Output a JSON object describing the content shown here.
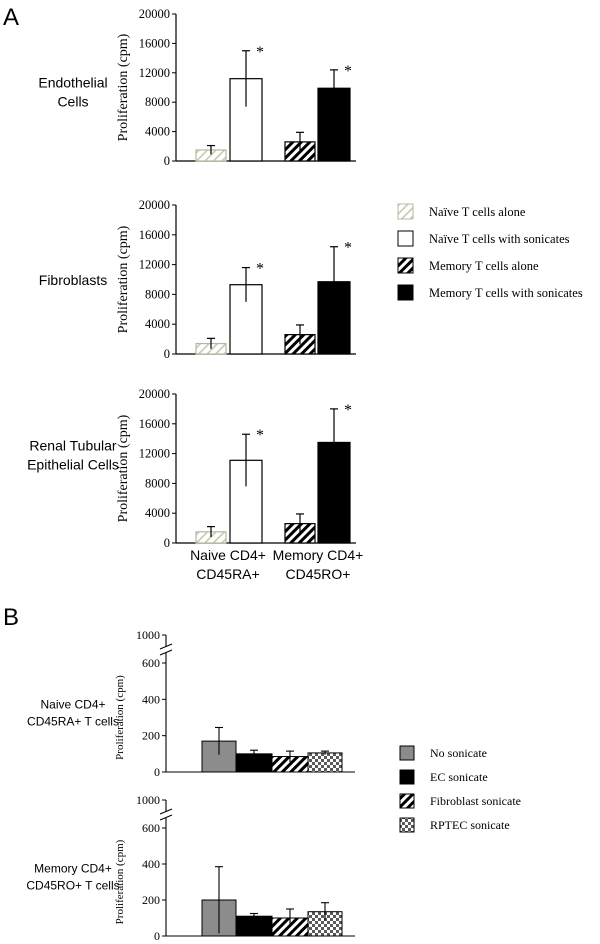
{
  "panel_labels": {
    "a": "A",
    "b": "B"
  },
  "colors": {
    "black": "#000000",
    "gray": "#8c8c8c",
    "white": "#ffffff",
    "stripe_light": "#c9c9b0"
  },
  "chart_data": [
    {
      "id": "a1",
      "panel": "A",
      "type": "bar",
      "row_label": [
        "Endothelial",
        "Cells"
      ],
      "ylabel": "Proliferation (cpm)",
      "ylim": [
        0,
        20000
      ],
      "yticks": [
        "0",
        "4000",
        "8000",
        "12000",
        "16000",
        "20000"
      ],
      "ytick_values": [
        0,
        4000,
        8000,
        12000,
        16000,
        20000
      ],
      "bars": [
        {
          "name": "Naïve T cells alone",
          "value": 1500,
          "err": 600,
          "style": "hatch-light",
          "sig": ""
        },
        {
          "name": "Naïve T cells with sonicates",
          "value": 11200,
          "err": 3800,
          "style": "white",
          "sig": "*"
        },
        {
          "name": "Memory T cells alone",
          "value": 2600,
          "err": 1300,
          "style": "hatch",
          "sig": ""
        },
        {
          "name": "Memory T cells with sonicates",
          "value": 9900,
          "err": 2500,
          "style": "black",
          "sig": "*"
        }
      ]
    },
    {
      "id": "a2",
      "panel": "A",
      "type": "bar",
      "row_label": [
        "Fibroblasts"
      ],
      "ylabel": "Proliferation (cpm)",
      "ylim": [
        0,
        20000
      ],
      "yticks": [
        "0",
        "4000",
        "8000",
        "12000",
        "16000",
        "20000"
      ],
      "ytick_values": [
        0,
        4000,
        8000,
        12000,
        16000,
        20000
      ],
      "bars": [
        {
          "name": "Naïve T cells alone",
          "value": 1400,
          "err": 700,
          "style": "hatch-light",
          "sig": ""
        },
        {
          "name": "Naïve T cells with sonicates",
          "value": 9300,
          "err": 2300,
          "style": "white",
          "sig": "*"
        },
        {
          "name": "Memory T cells alone",
          "value": 2600,
          "err": 1300,
          "style": "hatch",
          "sig": ""
        },
        {
          "name": "Memory T cells with sonicates",
          "value": 9700,
          "err": 4700,
          "style": "black",
          "sig": "*"
        }
      ]
    },
    {
      "id": "a3",
      "panel": "A",
      "type": "bar",
      "row_label": [
        "Renal Tubular",
        "Epithelial Cells"
      ],
      "ylabel": "Proliferation (cpm)",
      "ylim": [
        0,
        20000
      ],
      "yticks": [
        "0",
        "4000",
        "8000",
        "12000",
        "16000",
        "20000"
      ],
      "ytick_values": [
        0,
        4000,
        8000,
        12000,
        16000,
        20000
      ],
      "xgroups": [
        [
          "Naive CD4+",
          "CD45RA+"
        ],
        [
          "Memory CD4+",
          "CD45RO+"
        ]
      ],
      "bars": [
        {
          "name": "Naïve T cells alone",
          "value": 1500,
          "err": 700,
          "style": "hatch-light",
          "sig": ""
        },
        {
          "name": "Naïve T cells with sonicates",
          "value": 11100,
          "err": 3500,
          "style": "white",
          "sig": "*"
        },
        {
          "name": "Memory T cells alone",
          "value": 2600,
          "err": 1300,
          "style": "hatch",
          "sig": ""
        },
        {
          "name": "Memory T cells with sonicates",
          "value": 13500,
          "err": 4500,
          "style": "black",
          "sig": "*"
        }
      ]
    },
    {
      "id": "b1",
      "panel": "B",
      "type": "bar",
      "row_label": [
        "Naive CD4+",
        "CD45RA+ T cells"
      ],
      "ylabel": "Proliferation (cpm)",
      "yticks": [
        "0",
        "200",
        "400",
        "600",
        "1000"
      ],
      "ytick_values": [
        0,
        200,
        400,
        600,
        1000
      ],
      "axis_break": true,
      "bars": [
        {
          "name": "No sonicate",
          "value": 170,
          "err": 75,
          "style": "gray"
        },
        {
          "name": "EC sonicate",
          "value": 100,
          "err": 20,
          "style": "black"
        },
        {
          "name": "Fibroblast sonicate",
          "value": 85,
          "err": 30,
          "style": "hatch"
        },
        {
          "name": "RPTEC sonicate",
          "value": 105,
          "err": 10,
          "style": "check"
        }
      ]
    },
    {
      "id": "b2",
      "panel": "B",
      "type": "bar",
      "row_label": [
        "Memory CD4+",
        "CD45RO+ T cells"
      ],
      "ylabel": "Proliferation (cpm)",
      "yticks": [
        "0",
        "200",
        "400",
        "600",
        "1000"
      ],
      "ytick_values": [
        0,
        200,
        400,
        600,
        1000
      ],
      "axis_break": true,
      "bars": [
        {
          "name": "No sonicate",
          "value": 200,
          "err": 185,
          "style": "gray"
        },
        {
          "name": "EC sonicate",
          "value": 110,
          "err": 15,
          "style": "black"
        },
        {
          "name": "Fibroblast sonicate",
          "value": 100,
          "err": 50,
          "style": "hatch"
        },
        {
          "name": "RPTEC sonicate",
          "value": 135,
          "err": 50,
          "style": "check"
        }
      ]
    }
  ],
  "legend_a": [
    {
      "label": "Naïve T cells alone",
      "style": "hatch-light"
    },
    {
      "label": "Naïve T cells with sonicates",
      "style": "white"
    },
    {
      "label": "Memory T cells alone",
      "style": "hatch"
    },
    {
      "label": "Memory T cells with sonicates",
      "style": "black"
    }
  ],
  "legend_b": [
    {
      "label": "No sonicate",
      "style": "gray"
    },
    {
      "label": "EC sonicate",
      "style": "black"
    },
    {
      "label": "Fibroblast sonicate",
      "style": "hatch"
    },
    {
      "label": "RPTEC sonicate",
      "style": "check"
    }
  ]
}
